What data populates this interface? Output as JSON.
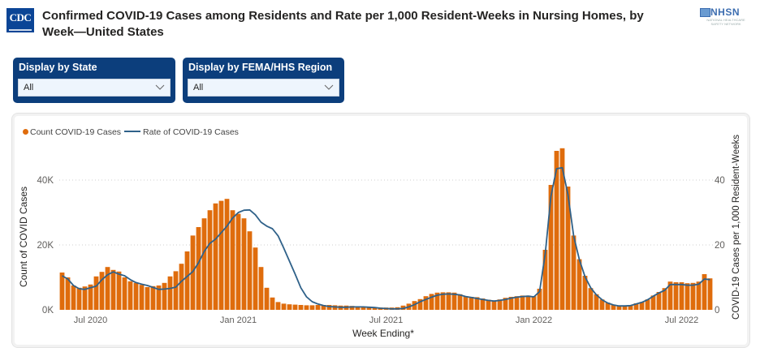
{
  "header": {
    "logo_text": "CDC",
    "title": "Confirmed COVID-19 Cases among Residents and Rate per 1,000 Resident-Weeks in Nursing Homes, by Week—United States",
    "partner_logo": "NHSN",
    "partner_tagline": "NATIONAL HEALTHCARE SAFETY NETWORK"
  },
  "filters": [
    {
      "label": "Display by State",
      "selected": "All",
      "icon": "chevron-down-icon"
    },
    {
      "label": "Display by FEMA/HHS Region",
      "selected": "All",
      "icon": "chevron-down-icon"
    }
  ],
  "colors": {
    "bar": "#df6c0c",
    "line": "#2f6189",
    "slicer_bg": "#0c3e7c",
    "grid": "#cfcfcf"
  },
  "chart_data": {
    "type": "bar",
    "title": "",
    "xlabel": "Week Ending*",
    "ylabel": "Count of COVID Cases",
    "y2label": "COVID-19 Cases per 1,000 Resident-Weeks",
    "ylim": [
      0,
      50000
    ],
    "y2lim": [
      0,
      50
    ],
    "yticks": [
      {
        "v": 0,
        "label": "0K"
      },
      {
        "v": 20000,
        "label": "20K"
      },
      {
        "v": 40000,
        "label": "40K"
      }
    ],
    "y2ticks": [
      {
        "v": 0,
        "label": "0"
      },
      {
        "v": 20,
        "label": "20"
      },
      {
        "v": 40,
        "label": "40"
      }
    ],
    "xticks": [
      {
        "index": 5,
        "label": "Jul 2020"
      },
      {
        "index": 31,
        "label": "Jan 2021"
      },
      {
        "index": 57,
        "label": "Jul 2021"
      },
      {
        "index": 83,
        "label": "Jan 2022"
      },
      {
        "index": 109,
        "label": "Jul 2022"
      }
    ],
    "grid": true,
    "legend": {
      "position": "top-left",
      "entries": [
        "Count COVID-19 Cases",
        "Rate of COVID-19 Cases"
      ]
    },
    "series": [
      {
        "name": "Count COVID-19 Cases",
        "kind": "bar",
        "axis": "left",
        "values": [
          11500,
          10000,
          7500,
          6800,
          7200,
          7800,
          10300,
          11700,
          13200,
          12300,
          11800,
          10000,
          8800,
          8300,
          7700,
          7000,
          7300,
          7500,
          8300,
          10300,
          11900,
          14200,
          18000,
          22900,
          25500,
          28200,
          30700,
          32800,
          33600,
          34200,
          30700,
          29600,
          28200,
          24200,
          19200,
          13200,
          6800,
          3800,
          2400,
          1900,
          1700,
          1600,
          1500,
          1400,
          1400,
          1500,
          1500,
          1500,
          1400,
          1300,
          1300,
          1200,
          1100,
          900,
          800,
          700,
          700,
          700,
          700,
          800,
          1300,
          1900,
          2700,
          3300,
          4200,
          4900,
          5300,
          5400,
          5400,
          5300,
          4800,
          4200,
          4000,
          3900,
          3500,
          3100,
          2900,
          3200,
          3700,
          4000,
          4200,
          4400,
          4400,
          4200,
          6500,
          18500,
          38500,
          49000,
          49800,
          38000,
          22900,
          15600,
          10500,
          6700,
          4800,
          3200,
          2200,
          1600,
          1300,
          1200,
          1400,
          2000,
          2400,
          3200,
          4400,
          5500,
          6700,
          8700,
          8500,
          8500,
          8200,
          8300,
          8700,
          11000,
          9700
        ]
      },
      {
        "name": "Rate of COVID-19 Cases",
        "kind": "line",
        "axis": "right",
        "values": [
          10.5,
          9.5,
          7.5,
          6.5,
          6.3,
          6.8,
          7.3,
          9.3,
          10.8,
          11.7,
          11.0,
          10.5,
          9.3,
          8.4,
          7.9,
          7.5,
          6.9,
          6.3,
          6.4,
          6.6,
          7.0,
          8.8,
          10.3,
          11.8,
          14.5,
          18.0,
          20.5,
          21.8,
          23.8,
          25.8,
          28.3,
          30.0,
          30.7,
          30.8,
          29.3,
          27.0,
          25.8,
          25.0,
          22.8,
          19.0,
          15.0,
          11.0,
          6.8,
          4.0,
          2.5,
          1.8,
          1.3,
          1.0,
          0.9,
          0.8,
          0.8,
          0.9,
          0.9,
          0.9,
          0.8,
          0.7,
          0.5,
          0.4,
          0.3,
          0.3,
          0.4,
          0.9,
          1.6,
          2.5,
          3.2,
          3.9,
          4.5,
          4.8,
          4.9,
          4.8,
          4.6,
          4.1,
          3.8,
          3.5,
          3.2,
          2.9,
          2.7,
          2.9,
          3.2,
          3.6,
          3.9,
          4.1,
          4.2,
          4.0,
          5.6,
          17.3,
          35.0,
          43.5,
          43.8,
          35.5,
          22.8,
          15.5,
          10.2,
          6.8,
          4.6,
          3.1,
          2.1,
          1.5,
          1.2,
          1.2,
          1.3,
          1.8,
          2.3,
          3.1,
          4.2,
          5.2,
          6.0,
          7.8,
          7.8,
          7.8,
          7.6,
          7.6,
          7.9,
          9.5,
          9.3
        ]
      }
    ]
  }
}
